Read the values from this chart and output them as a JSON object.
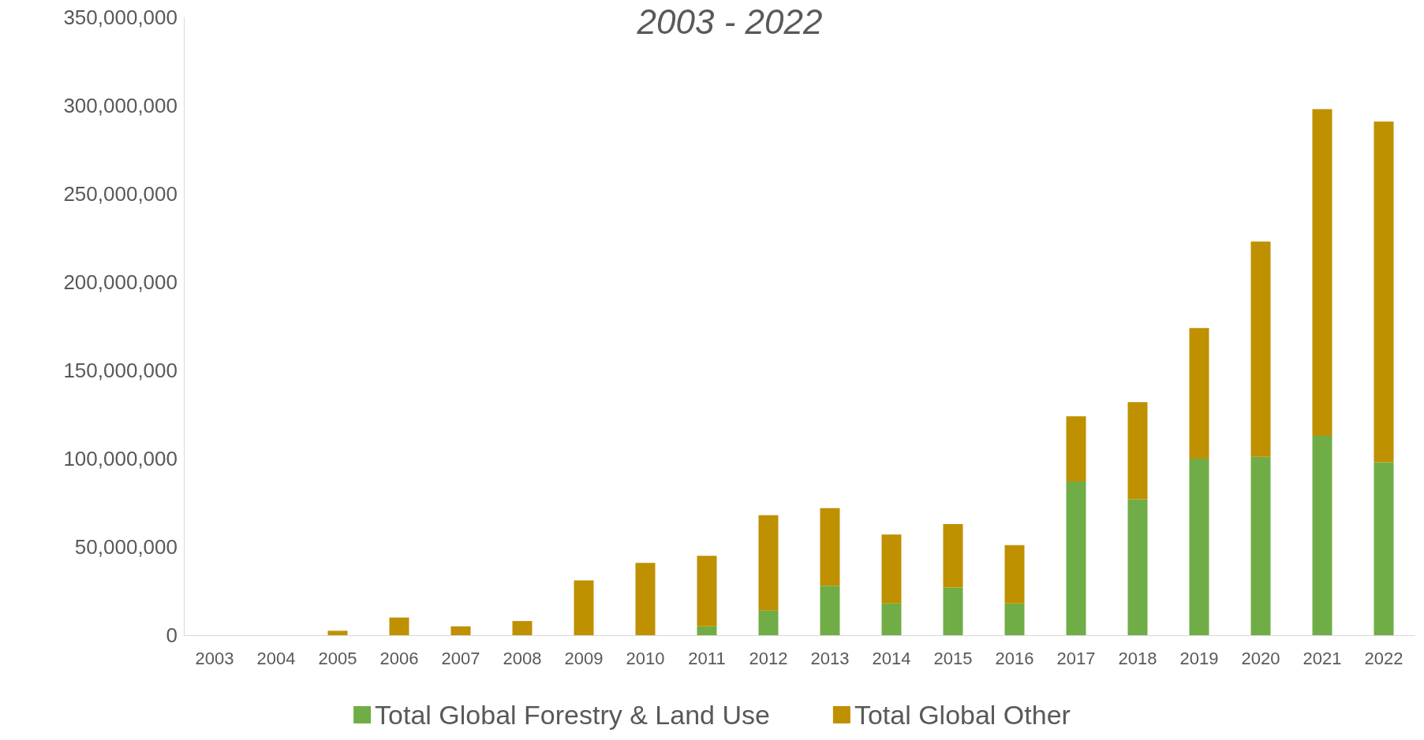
{
  "chart_data": {
    "type": "bar",
    "title": "2003 - 2022",
    "stacked": true,
    "legend": "bottom",
    "grid": false,
    "categories": [
      "2003",
      "2004",
      "2005",
      "2006",
      "2007",
      "2008",
      "2009",
      "2010",
      "2011",
      "2012",
      "2013",
      "2014",
      "2015",
      "2016",
      "2017",
      "2018",
      "2019",
      "2020",
      "2021",
      "2022"
    ],
    "ylim": [
      0,
      350000000
    ],
    "yticks": [
      0,
      {
        "value": 50000000,
        "label": "50,000,000"
      },
      {
        "value": 100000000,
        "label": "100,000,000"
      },
      {
        "value": 150000000,
        "label": "150,000,000"
      },
      {
        "value": 200000000,
        "label": "200,000,000"
      },
      {
        "value": 250000000,
        "label": "250,000,000"
      },
      {
        "value": 300000000,
        "label": "300,000,000"
      },
      {
        "value": 350000000,
        "label": "350,000,000"
      }
    ],
    "series": [
      {
        "name": "Total Global Forestry & Land Use",
        "color": "#70ad47",
        "values": [
          0,
          0,
          0,
          0,
          0,
          0,
          0,
          0,
          5000000,
          14000000,
          28000000,
          18000000,
          27000000,
          18000000,
          87000000,
          77000000,
          100000000,
          101000000,
          113000000,
          98000000
        ]
      },
      {
        "name": "Total Global Other",
        "color": "#bf9000",
        "values": [
          0,
          0,
          2500000,
          10000000,
          5000000,
          8000000,
          31000000,
          41000000,
          40000000,
          54000000,
          44000000,
          39000000,
          36000000,
          33000000,
          37000000,
          55000000,
          74000000,
          122000000,
          185000000,
          193000000
        ]
      }
    ]
  }
}
